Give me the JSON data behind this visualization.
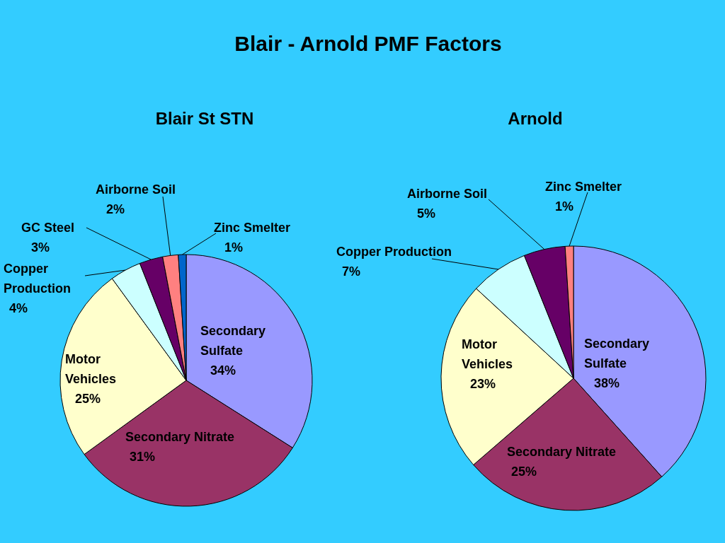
{
  "chart_data": [
    {
      "type": "pie",
      "title": "Blair St STN",
      "annotations": [
        "Blair - Arnold  PMF Factors"
      ],
      "categories": [
        "Secondary Sulfate",
        "Secondary Nitrate",
        "Motor Vehicles",
        "Copper Production",
        "GC Steel",
        "Airborne Soil",
        "Zinc Smelter"
      ],
      "values": [
        34,
        31,
        25,
        4,
        3,
        2,
        1
      ],
      "colors": [
        "#9999ff",
        "#993366",
        "#ffffcc",
        "#ccffff",
        "#660066",
        "#ff8080",
        "#0066cc"
      ],
      "value_labels": [
        "34%",
        "31%",
        "25%",
        "4%",
        "3%",
        "2%",
        "1%"
      ]
    },
    {
      "type": "pie",
      "title": "Arnold",
      "categories": [
        "Secondary Sulfate",
        "Secondary Nitrate",
        "Motor Vehicles",
        "Copper Production",
        "Airborne Soil",
        "Zinc Smelter"
      ],
      "values": [
        38,
        25,
        23,
        7,
        5,
        1
      ],
      "colors": [
        "#9999ff",
        "#993366",
        "#ffffcc",
        "#ccffff",
        "#660066",
        "#ff8080"
      ],
      "value_labels": [
        "38%",
        "25%",
        "23%",
        "7%",
        "5%",
        "1%"
      ]
    }
  ]
}
